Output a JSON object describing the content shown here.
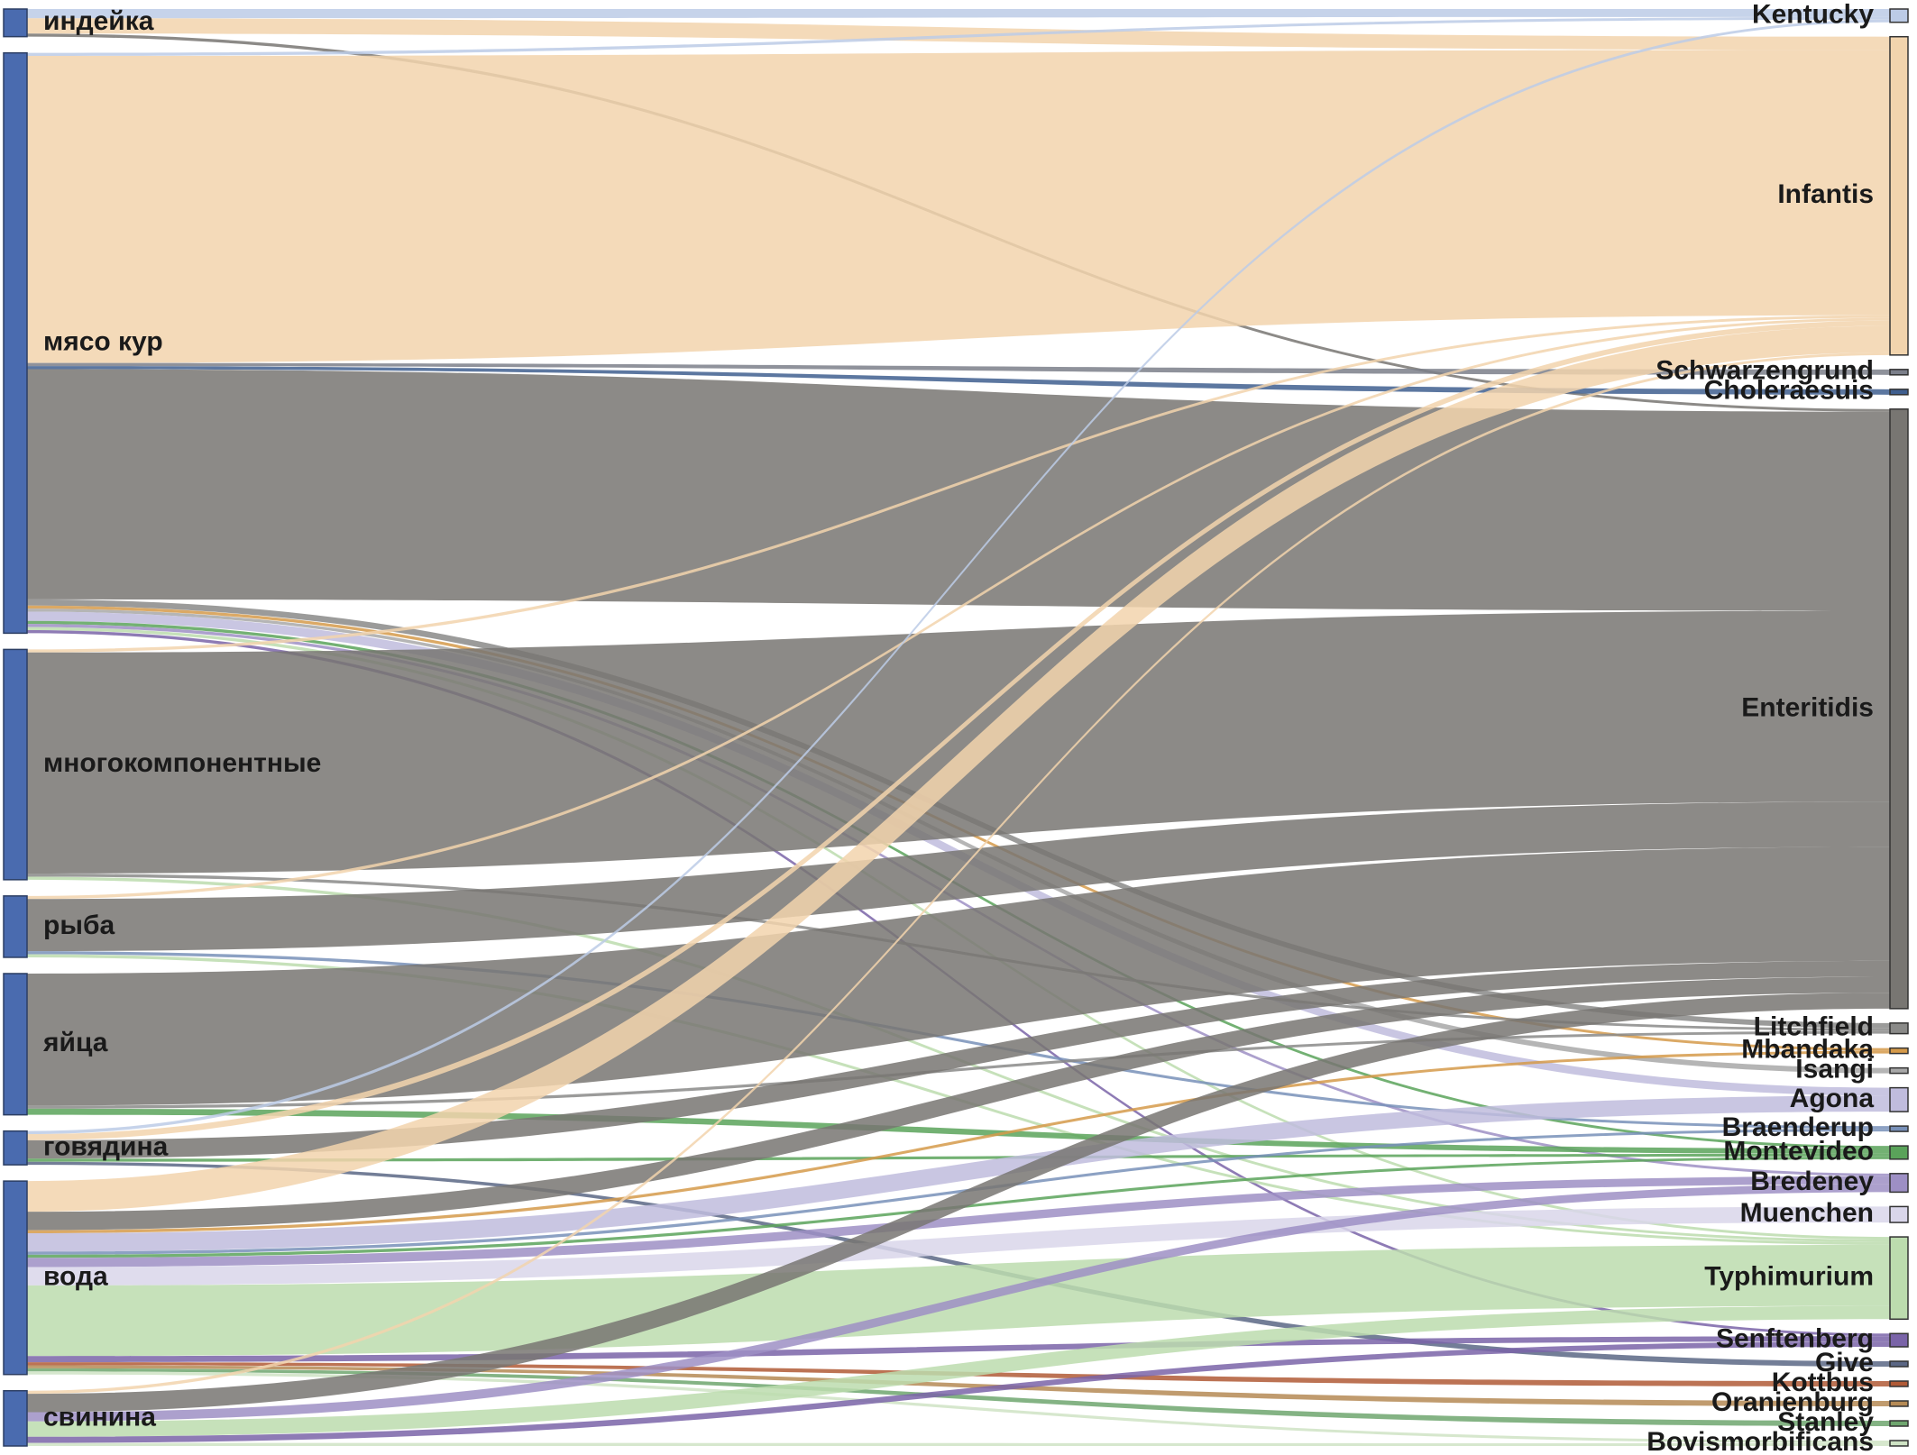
{
  "chart_data": {
    "type": "sankey",
    "sources": [
      {
        "name": "индейка",
        "color": "#4a6baf"
      },
      {
        "name": "мясо кур",
        "color": "#4a6baf"
      },
      {
        "name": "многокомпонентные",
        "color": "#4a6baf"
      },
      {
        "name": "рыба",
        "color": "#4a6baf"
      },
      {
        "name": "яйца",
        "color": "#4a6baf"
      },
      {
        "name": "говядина",
        "color": "#4a6baf"
      },
      {
        "name": "вода",
        "color": "#4a6baf"
      },
      {
        "name": "свинина",
        "color": "#4a6baf"
      }
    ],
    "targets": [
      {
        "name": "Kentucky",
        "color": "#bccbe6"
      },
      {
        "name": "Infantis",
        "color": "#f2d4ad"
      },
      {
        "name": "Schwarzengrund",
        "color": "#7b7f8a"
      },
      {
        "name": "Choleraesuis",
        "color": "#3f5f8f"
      },
      {
        "name": "Enteritidis",
        "color": "#787672"
      },
      {
        "name": "Litchfield",
        "color": "#8a8a88"
      },
      {
        "name": "Mbandaka",
        "color": "#d59a4a"
      },
      {
        "name": "Isangi",
        "color": "#a8a8a8"
      },
      {
        "name": "Agona",
        "color": "#c0bcdd"
      },
      {
        "name": "Braenderup",
        "color": "#7890b8"
      },
      {
        "name": "Montevideo",
        "color": "#5aa35a"
      },
      {
        "name": "Bredeney",
        "color": "#9d8fc4"
      },
      {
        "name": "Muenchen",
        "color": "#d9d6ea"
      },
      {
        "name": "Typhimurium",
        "color": "#bcdcae"
      },
      {
        "name": "Senftenberg",
        "color": "#7a64a8"
      },
      {
        "name": "Give",
        "color": "#5b6785"
      },
      {
        "name": "Kottbus",
        "color": "#b05a36"
      },
      {
        "name": "Oranienburg",
        "color": "#b58a55"
      },
      {
        "name": "Stanley",
        "color": "#6fa66f"
      },
      {
        "name": "Bovismorbificans",
        "color": "#cfe3c4"
      }
    ],
    "links": [
      {
        "source": "индейка",
        "target": "Kentucky",
        "value": 3
      },
      {
        "source": "индейка",
        "target": "Infantis",
        "value": 5
      },
      {
        "source": "индейка",
        "target": "Enteritidis",
        "value": 1
      },
      {
        "source": "мясо кур",
        "target": "Kentucky",
        "value": 1
      },
      {
        "source": "мясо кур",
        "target": "Infantis",
        "value": 100
      },
      {
        "source": "мясо кур",
        "target": "Schwarzengrund",
        "value": 1
      },
      {
        "source": "мясо кур",
        "target": "Choleraesuis",
        "value": 1
      },
      {
        "source": "мясо кур",
        "target": "Enteritidis",
        "value": 75
      },
      {
        "source": "мясо кур",
        "target": "Litchfield",
        "value": 2
      },
      {
        "source": "мясо кур",
        "target": "Mbandaka",
        "value": 1
      },
      {
        "source": "мясо кур",
        "target": "Isangi",
        "value": 1
      },
      {
        "source": "мясо кур",
        "target": "Agona",
        "value": 3
      },
      {
        "source": "мясо кур",
        "target": "Montevideo",
        "value": 1
      },
      {
        "source": "мясо кур",
        "target": "Bredeney",
        "value": 1
      },
      {
        "source": "мясо кур",
        "target": "Typhimurium",
        "value": 1
      },
      {
        "source": "мясо кур",
        "target": "Senftenberg",
        "value": 1
      },
      {
        "source": "многокомпонентные",
        "target": "Infantis",
        "value": 1
      },
      {
        "source": "многокомпонентные",
        "target": "Enteritidis",
        "value": 72
      },
      {
        "source": "многокомпонентные",
        "target": "Litchfield",
        "value": 1
      },
      {
        "source": "многокомпонентные",
        "target": "Typhimurium",
        "value": 1
      },
      {
        "source": "рыба",
        "target": "Infantis",
        "value": 1
      },
      {
        "source": "рыба",
        "target": "Enteritidis",
        "value": 17
      },
      {
        "source": "рыба",
        "target": "Braenderup",
        "value": 1
      },
      {
        "source": "рыба",
        "target": "Typhimurium",
        "value": 1
      },
      {
        "source": "яйца",
        "target": "Enteritidis",
        "value": 43
      },
      {
        "source": "яйца",
        "target": "Litchfield",
        "value": 1
      },
      {
        "source": "яйца",
        "target": "Montevideo",
        "value": 2
      },
      {
        "source": "говядина",
        "target": "Kentucky",
        "value": 1
      },
      {
        "source": "говядина",
        "target": "Infantis",
        "value": 2
      },
      {
        "source": "говядина",
        "target": "Enteritidis",
        "value": 6
      },
      {
        "source": "говядина",
        "target": "Montevideo",
        "value": 1
      },
      {
        "source": "говядина",
        "target": "Give",
        "value": 1
      },
      {
        "source": "вода",
        "target": "Infantis",
        "value": 10
      },
      {
        "source": "вода",
        "target": "Enteritidis",
        "value": 6
      },
      {
        "source": "вода",
        "target": "Mbandaka",
        "value": 1
      },
      {
        "source": "вода",
        "target": "Agona",
        "value": 6
      },
      {
        "source": "вода",
        "target": "Braenderup",
        "value": 1
      },
      {
        "source": "вода",
        "target": "Montevideo",
        "value": 1
      },
      {
        "source": "вода",
        "target": "Bredeney",
        "value": 3
      },
      {
        "source": "вода",
        "target": "Muenchen",
        "value": 6
      },
      {
        "source": "вода",
        "target": "Typhimurium",
        "value": 23
      },
      {
        "source": "вода",
        "target": "Senftenberg",
        "value": 2
      },
      {
        "source": "вода",
        "target": "Kottbus",
        "value": 1
      },
      {
        "source": "вода",
        "target": "Oranienburg",
        "value": 1
      },
      {
        "source": "вода",
        "target": "Stanley",
        "value": 1
      },
      {
        "source": "вода",
        "target": "Bovismorbificans",
        "value": 1
      },
      {
        "source": "свинина",
        "target": "Infantis",
        "value": 1
      },
      {
        "source": "свинина",
        "target": "Enteritidis",
        "value": 6
      },
      {
        "source": "свинина",
        "target": "Bredeney",
        "value": 3
      },
      {
        "source": "свинина",
        "target": "Typhimurium",
        "value": 5
      },
      {
        "source": "свинина",
        "target": "Senftenberg",
        "value": 2
      },
      {
        "source": "свинина",
        "target": "Bovismorbificans",
        "value": 1
      }
    ]
  }
}
